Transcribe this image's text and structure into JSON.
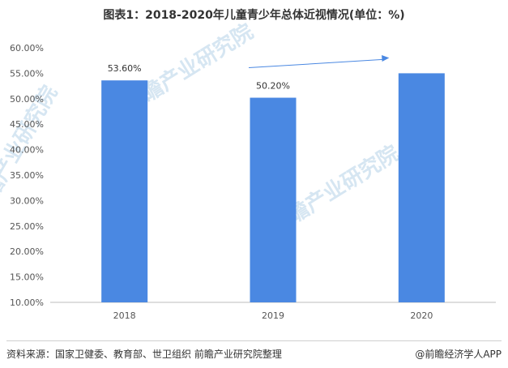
{
  "title": "图表1：2018-2020年儿童青少年总体近视情况(单位：%)",
  "source": "资料来源：国家卫健委、教育部、世卫组织 前瞻产业研究院整理",
  "brand": "@前瞻经济学人APP",
  "watermark": "前瞻产业研究院",
  "colors": {
    "bar": "#4a88e2",
    "arrow": "#4a88e2",
    "axis": "#bdbdbd"
  },
  "chart_data": {
    "type": "bar",
    "categories": [
      "2018",
      "2019",
      "2020"
    ],
    "values": [
      53.6,
      50.2,
      55.0
    ],
    "data_labels": [
      "53.60%",
      "50.20%",
      ""
    ],
    "ylim": [
      10,
      60
    ],
    "yticks": [
      "10.00%",
      "15.00%",
      "20.00%",
      "25.00%",
      "30.00%",
      "35.00%",
      "40.00%",
      "45.00%",
      "50.00%",
      "55.00%",
      "60.00%"
    ],
    "xlabel": "",
    "ylabel": "",
    "grid": false,
    "annotations": [
      {
        "type": "arrow",
        "from": "2019",
        "to": "2020",
        "direction": "upward trend"
      }
    ]
  }
}
